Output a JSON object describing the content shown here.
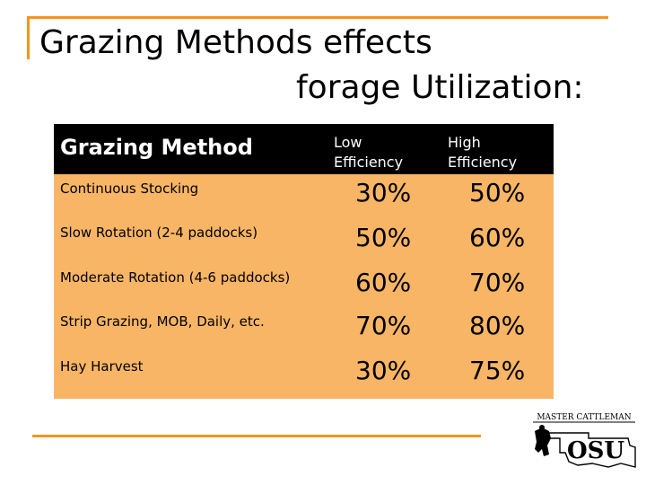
{
  "slide": {
    "title_line1": "Grazing Methods effects",
    "title_line2": "forage Utilization:"
  },
  "table": {
    "header": {
      "method": "Grazing Method",
      "low_line1": "Low",
      "low_line2": "Efficiency",
      "high_line1": "High",
      "high_line2": "Efficiency"
    },
    "rows": [
      {
        "method": "Continuous Stocking",
        "low": "30%",
        "high": "50%"
      },
      {
        "method": "Slow Rotation (2-4 paddocks)",
        "low": "50%",
        "high": "60%"
      },
      {
        "method": "Moderate Rotation (4-6 paddocks)",
        "low": "60%",
        "high": "70%"
      },
      {
        "method": "Strip Grazing, MOB, Daily, etc.",
        "low": "70%",
        "high": "80%"
      },
      {
        "method": "Hay Harvest",
        "low": "30%",
        "high": "75%"
      }
    ]
  },
  "logo": {
    "top_text": "MASTER CATTLEMAN",
    "brand": "OSU"
  },
  "colors": {
    "accent": "#F7941D",
    "table_fill": "#F8B565",
    "header_fill": "#000000"
  }
}
